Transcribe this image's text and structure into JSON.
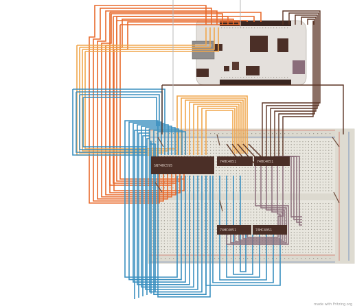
{
  "credit": "made with Fritzing.org",
  "chips": {
    "main_chip": "SN74HC595",
    "chip_2": "74HC4051",
    "chip_3": "74HC4051",
    "chip_4": "74HC4051",
    "chip_5": "74HC4051"
  },
  "colors": {
    "orange_wire": "#e8692a",
    "orange_light": "#f0a64b",
    "blue_wire": "#3a8fbf",
    "brown_wire": "#5b3424",
    "mauve_wire": "#8a6d7a",
    "board_pcb": "#e4e0dc",
    "breadboard": "#e8e6de",
    "chip_body": "#4b2f27"
  }
}
